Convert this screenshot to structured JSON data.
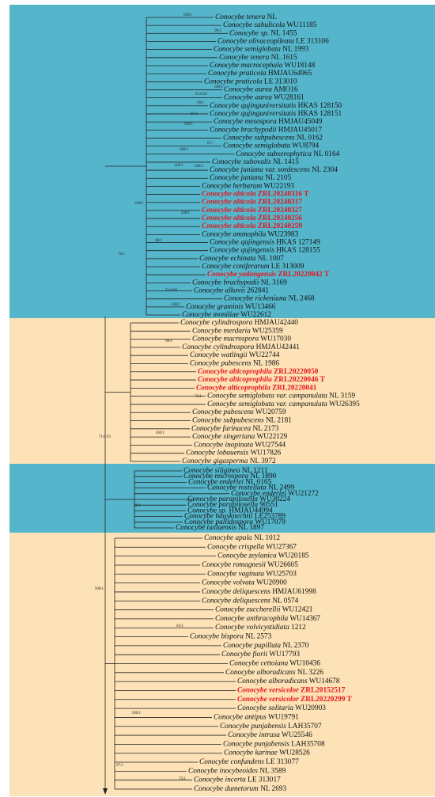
{
  "tree": {
    "groups": [
      {
        "leaves": [
          {
            "name": "Conocybe tenera",
            "voucher": "NL"
          },
          {
            "name": "Conocybe sabulicola",
            "voucher": "WU11185"
          },
          {
            "name": "Conocybe sp.",
            "voucher": "NL 1455"
          },
          {
            "name": "Conocybe olivaceopileata",
            "voucher": "LE 313106"
          },
          {
            "name": "Conocybe semiglobata",
            "voucher": "NL 1993"
          },
          {
            "name": "Conocybe tenera",
            "voucher": "NL 1615"
          },
          {
            "name": "Conocybe macrocephala",
            "voucher": "WU18148"
          },
          {
            "name": "Conocybe praticola",
            "voucher": "HMJAU64965"
          },
          {
            "name": "Conocybe praticola",
            "voucher": "LE 313010"
          },
          {
            "name": "Conocybe aurea",
            "voucher": "AMO16"
          },
          {
            "name": "Conocybe aurea",
            "voucher": "WU28161"
          },
          {
            "name": "Conocybe qujinguniversitatis",
            "voucher": "HKAS 128150"
          },
          {
            "name": "Conocybe qujinguniversitatis",
            "voucher": "HKAS 128151"
          },
          {
            "name": "Conocybe mesospora",
            "voucher": "HMJAU45049"
          },
          {
            "name": "Conocybe brachypodii",
            "voucher": "HMJAU45017"
          },
          {
            "name": "Conocybe subpubescens",
            "voucher": "NL 0162"
          },
          {
            "name": "Conocybe semiglobata",
            "voucher": "WU8794"
          },
          {
            "name": "Conocybe subxerophytica",
            "voucher": "NL 0164"
          },
          {
            "name": "Conocybe subovalis",
            "voucher": "NL 1415"
          },
          {
            "name": "Conocybe juniana var. sordescens",
            "voucher": "NL 2304"
          },
          {
            "name": "Conocybe juniana",
            "voucher": "NL 2105"
          },
          {
            "name": "Conocybe herbarum",
            "voucher": "WU22193"
          },
          {
            "name": "Conocybe alticola",
            "voucher": "ZRL20240316 T",
            "color": "#e8141c"
          },
          {
            "name": "Conocybe alticola",
            "voucher": "ZRL20240317",
            "color": "#e8141c"
          },
          {
            "name": "Conocybe alticola",
            "voucher": "ZRL20240327",
            "color": "#e8141c"
          },
          {
            "name": "Conocybe alticola",
            "voucher": "ZRL20240256",
            "color": "#e8141c"
          },
          {
            "name": "Conocybe alticola",
            "voucher": "ZRL20240259",
            "color": "#e8141c"
          },
          {
            "name": "Conocybe ammophila",
            "voucher": "WU23983"
          },
          {
            "name": "Conocybe qujingensis",
            "voucher": "HKAS 127149"
          },
          {
            "name": "Conocybe qujingensis",
            "voucher": "HKAS 128155"
          },
          {
            "name": "Conocybe echinata",
            "voucher": "NL 1007"
          },
          {
            "name": "Conocybe coniferarum",
            "voucher": "LE 313009"
          },
          {
            "name": "Conocybe yadongensis",
            "voucher": "ZRL20220042 T",
            "color": "#e8141c"
          },
          {
            "name": "Conocybe brachypodii",
            "voucher": "NL 3169"
          },
          {
            "name": "Conocybe alkovii",
            "voucher": "262841"
          },
          {
            "name": "Conocybe rickeniana",
            "voucher": "NL 2468"
          },
          {
            "name": "Conocybe graminis",
            "voucher": "WU13466"
          },
          {
            "name": "Conocybe moniliae",
            "voucher": "WU22612"
          }
        ]
      },
      {
        "leaves": [
          {
            "name": "Conocybe cylindrospora",
            "voucher": "HMJAU42440"
          },
          {
            "name": "Conocybe merdaria",
            "voucher": "WU25359"
          },
          {
            "name": "Conocybe macrospora",
            "voucher": "WU17030"
          },
          {
            "name": "Conocybe cylindrospora",
            "voucher": "HMJAU42441"
          },
          {
            "name": "Conocybe watlingii",
            "voucher": "WU22744"
          },
          {
            "name": "Conocybe pubescens",
            "voucher": "NL 1986"
          },
          {
            "name": "Conocybe alticoprophila",
            "voucher": "ZRL20220050",
            "color": "#e8141c"
          },
          {
            "name": "Conocybe alticoprophila",
            "voucher": "ZRL20220046 T",
            "color": "#e8141c"
          },
          {
            "name": "Conocybe alticoprophila",
            "voucher": "ZRL20220041",
            "color": "#e8141c"
          },
          {
            "name": "Conocybe semiglobata var. campanulata",
            "voucher": "NL 3159"
          },
          {
            "name": "Conocybe semiglobata var. campanulata",
            "voucher": "WU26395"
          },
          {
            "name": "Conocybe pubescens",
            "voucher": "WU20759"
          },
          {
            "name": "Conocybe subpubescens",
            "voucher": "NL 2181"
          },
          {
            "name": "Conocybe farinacea",
            "voucher": "NL 2173"
          },
          {
            "name": "Conocybe singeriana",
            "voucher": "WU22129"
          },
          {
            "name": "Conocybe inopinata",
            "voucher": "WU27544"
          },
          {
            "name": "Conocybe lobauensis",
            "voucher": "WU17826"
          },
          {
            "name": "Conocybe gigasperma",
            "voucher": "NL 3972"
          }
        ]
      },
      {
        "leaves": [
          {
            "name": "Conocybe siliginea",
            "voucher": "NL 1211"
          },
          {
            "name": "Conocybe microspora",
            "voucher": "NL 1890"
          },
          {
            "name": "Conocybe enderlei",
            "voucher": "NL 0165"
          },
          {
            "name": "Conocybe rostellata",
            "voucher": "NL 2499"
          },
          {
            "name": "Conocybe enderlei",
            "voucher": "WU21272"
          },
          {
            "name": "Conocybe parapilosella",
            "voucher": "WU30224"
          },
          {
            "name": "Conocybe parapilosella",
            "voucher": "90551"
          },
          {
            "name": "Conocybe sp.",
            "voucher": "HMJAU44994"
          },
          {
            "name": "Conocybe hausknechtii",
            "voucher": "LE253789"
          },
          {
            "name": "Conocybe pallidospora",
            "voucher": "WU17079"
          },
          {
            "name": "Conocybe tuxlaensis",
            "voucher": "NL 1897"
          }
        ]
      },
      {
        "leaves": [
          {
            "name": "Conocybe apala",
            "voucher": "NL 1012"
          },
          {
            "name": "Conocybe crispella",
            "voucher": "WU27367"
          },
          {
            "name": "Conocybe zeylanica",
            "voucher": "WU20185"
          },
          {
            "name": "Conocybe romagnesii",
            "voucher": "WU26605"
          },
          {
            "name": "Conocybe vaginata",
            "voucher": "WU25703"
          },
          {
            "name": "Conocybe volvata",
            "voucher": "WU20900"
          },
          {
            "name": "Conocybe deliquescens",
            "voucher": "HMJAU61998"
          },
          {
            "name": "Conocybe deliquescens",
            "voucher": "NL 0574"
          },
          {
            "name": "Conocybe zuccherellii",
            "voucher": "WU12421"
          },
          {
            "name": "Conocybe anthracophila",
            "voucher": "WU14367"
          },
          {
            "name": "Conocybe volvicystidiata",
            "voucher": "1212"
          },
          {
            "name": "Conocybe bispora",
            "voucher": "NL 2573"
          },
          {
            "name": "Conocybe papillata",
            "voucher": "NL 2370"
          },
          {
            "name": "Conocybe fiorii",
            "voucher": "WU17793"
          },
          {
            "name": "Conocybe cettoiana",
            "voucher": "WU10436"
          },
          {
            "name": "Conocybe alboradicans",
            "voucher": "NL 3226"
          },
          {
            "name": "Conocybe alboradicans",
            "voucher": "WU14678"
          },
          {
            "name": "Conocybe versicolor",
            "voucher": "ZRL20152517",
            "color": "#e8141c"
          },
          {
            "name": "Conocybe versicolor",
            "voucher": "ZRL20220299 T",
            "color": "#e8141c"
          },
          {
            "name": "Conocybe solitaria",
            "voucher": "WU20903"
          },
          {
            "name": "Conocybe antipus",
            "voucher": "WU19791"
          },
          {
            "name": "Conocybe punjabensis",
            "voucher": "LAH35707"
          },
          {
            "name": "Conocybe intrusa",
            "voucher": "WU25546"
          },
          {
            "name": "Conocybe punjabensis",
            "voucher": "LAH35708"
          },
          {
            "name": "Conocybe karinae",
            "voucher": "WU28526"
          },
          {
            "name": "Conocybe confundens",
            "voucher": "LE 313077"
          },
          {
            "name": "Conocybe inocybeoides",
            "voucher": "NL 3589"
          },
          {
            "name": "Conocybe incerta",
            "voucher": "LE 313017"
          },
          {
            "name": "Conocybe dumetorum",
            "voucher": "NL 2693"
          }
        ]
      }
    ],
    "supports": [
      "100/1",
      "99/1",
      "100/1",
      "61/0.93",
      "99/1",
      "97/1",
      "100/1",
      "67/-",
      "100/1",
      "100/1",
      "100/1",
      "100/1",
      "100/1",
      "68/1",
      "72/1",
      "71/0.99",
      "100/1",
      "99/1",
      "72/1",
      "100/1",
      "71/0.93",
      "96/1",
      "100/1",
      "100/1",
      "83/1",
      "100/1",
      "97/1",
      "72/1"
    ]
  }
}
